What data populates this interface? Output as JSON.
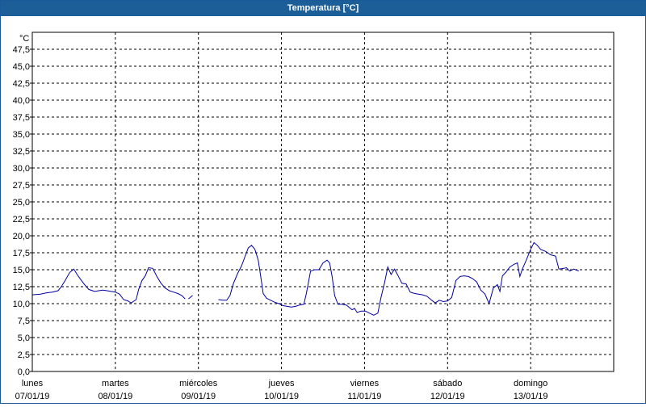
{
  "window": {
    "title": "Temperatura [°C]"
  },
  "chart_data": {
    "type": "line",
    "title": "Temperatura [°C]",
    "ylabel": "°C",
    "xlabel": "",
    "ylim": [
      0,
      50
    ],
    "yticks": [
      "0,0",
      "2,5",
      "5,0",
      "7,5",
      "10,0",
      "12,5",
      "15,0",
      "17,5",
      "20,0",
      "22,5",
      "25,0",
      "27,5",
      "30,0",
      "32,5",
      "35,0",
      "37,5",
      "40,0",
      "42,5",
      "45,0",
      "47,5"
    ],
    "xlim": [
      0,
      7
    ],
    "xlabels": [
      {
        "day": "lunes",
        "date": "07/01/19"
      },
      {
        "day": "martes",
        "date": "08/01/19"
      },
      {
        "day": "miércoles",
        "date": "09/01/19"
      },
      {
        "day": "jueves",
        "date": "10/01/19"
      },
      {
        "day": "viernes",
        "date": "11/01/19"
      },
      {
        "day": "sábado",
        "date": "12/01/19"
      },
      {
        "day": "domingo",
        "date": "13/01/19"
      }
    ],
    "grid": true,
    "line_color": "#0000a0",
    "series": [
      {
        "segments": [
          [
            [
              0.0,
              11.3
            ],
            [
              0.1,
              11.4
            ],
            [
              0.17,
              11.6
            ],
            [
              0.24,
              11.7
            ],
            [
              0.31,
              11.9
            ],
            [
              0.35,
              12.5
            ],
            [
              0.4,
              13.5
            ],
            [
              0.45,
              14.6
            ],
            [
              0.5,
              15.1
            ],
            [
              0.54,
              14.3
            ],
            [
              0.58,
              13.6
            ],
            [
              0.63,
              12.8
            ],
            [
              0.68,
              12.1
            ],
            [
              0.75,
              11.8
            ],
            [
              0.8,
              11.9
            ],
            [
              0.85,
              12.0
            ],
            [
              0.9,
              11.9
            ],
            [
              0.95,
              11.8
            ],
            [
              1.0,
              11.7
            ],
            [
              1.05,
              11.4
            ],
            [
              1.1,
              10.6
            ],
            [
              1.15,
              10.4
            ],
            [
              1.19,
              10.1
            ],
            [
              1.25,
              10.6
            ],
            [
              1.28,
              12.1
            ],
            [
              1.32,
              13.4
            ],
            [
              1.36,
              14.1
            ],
            [
              1.4,
              15.3
            ],
            [
              1.45,
              15.2
            ],
            [
              1.5,
              14.0
            ],
            [
              1.55,
              13.0
            ],
            [
              1.6,
              12.3
            ],
            [
              1.65,
              11.9
            ],
            [
              1.7,
              11.7
            ],
            [
              1.75,
              11.5
            ],
            [
              1.8,
              11.2
            ],
            [
              1.84,
              10.7
            ]
          ],
          [
            [
              1.88,
              10.7
            ],
            [
              1.93,
              11.2
            ]
          ],
          [
            [
              2.24,
              10.6
            ],
            [
              2.3,
              10.5
            ],
            [
              2.34,
              10.5
            ],
            [
              2.38,
              11.2
            ],
            [
              2.42,
              12.9
            ],
            [
              2.47,
              14.4
            ],
            [
              2.52,
              15.6
            ],
            [
              2.56,
              16.9
            ],
            [
              2.6,
              18.2
            ],
            [
              2.64,
              18.6
            ],
            [
              2.68,
              18.0
            ],
            [
              2.72,
              16.4
            ],
            [
              2.75,
              14.0
            ],
            [
              2.78,
              11.5
            ],
            [
              2.82,
              10.8
            ],
            [
              2.87,
              10.5
            ],
            [
              2.92,
              10.2
            ],
            [
              2.97,
              10.0
            ],
            [
              3.02,
              9.7
            ],
            [
              3.07,
              9.6
            ],
            [
              3.12,
              9.5
            ],
            [
              3.17,
              9.6
            ],
            [
              3.22,
              9.8
            ],
            [
              3.27,
              9.9
            ],
            [
              3.3,
              11.5
            ],
            [
              3.35,
              14.8
            ],
            [
              3.4,
              15.0
            ],
            [
              3.45,
              15.0
            ],
            [
              3.5,
              16.0
            ],
            [
              3.55,
              16.4
            ],
            [
              3.58,
              16.0
            ],
            [
              3.61,
              14.0
            ],
            [
              3.64,
              11.2
            ],
            [
              3.68,
              9.9
            ],
            [
              3.73,
              9.9
            ],
            [
              3.78,
              9.8
            ],
            [
              3.82,
              9.4
            ],
            [
              3.85,
              9.1
            ],
            [
              3.88,
              9.3
            ],
            [
              3.91,
              8.7
            ],
            [
              3.96,
              8.9
            ],
            [
              4.01,
              8.9
            ],
            [
              4.06,
              8.6
            ],
            [
              4.11,
              8.3
            ],
            [
              4.16,
              8.6
            ],
            [
              4.2,
              11.0
            ],
            [
              4.24,
              13.0
            ],
            [
              4.28,
              15.4
            ],
            [
              4.32,
              14.3
            ],
            [
              4.36,
              15.1
            ],
            [
              4.4,
              14.2
            ],
            [
              4.45,
              13.0
            ],
            [
              4.5,
              12.9
            ],
            [
              4.55,
              11.7
            ],
            [
              4.6,
              11.5
            ],
            [
              4.65,
              11.4
            ],
            [
              4.7,
              11.3
            ],
            [
              4.75,
              11.1
            ],
            [
              4.8,
              10.6
            ],
            [
              4.85,
              10.1
            ],
            [
              4.9,
              10.5
            ],
            [
              4.95,
              10.3
            ],
            [
              5.0,
              10.4
            ],
            [
              5.05,
              10.9
            ],
            [
              5.1,
              13.4
            ],
            [
              5.15,
              14.0
            ],
            [
              5.2,
              14.1
            ],
            [
              5.25,
              14.0
            ],
            [
              5.3,
              13.7
            ],
            [
              5.35,
              13.2
            ],
            [
              5.4,
              12.0
            ],
            [
              5.45,
              11.4
            ],
            [
              5.5,
              10.0
            ],
            [
              5.55,
              12.3
            ],
            [
              5.6,
              12.8
            ],
            [
              5.63,
              11.8
            ],
            [
              5.66,
              14.1
            ],
            [
              5.7,
              14.6
            ],
            [
              5.75,
              15.4
            ],
            [
              5.8,
              15.8
            ],
            [
              5.84,
              16.0
            ],
            [
              5.87,
              14.0
            ],
            [
              5.9,
              15.1
            ],
            [
              5.95,
              16.5
            ],
            [
              6.0,
              18.0
            ],
            [
              6.04,
              19.0
            ],
            [
              6.08,
              18.6
            ],
            [
              6.12,
              18.0
            ],
            [
              6.18,
              17.7
            ],
            [
              6.24,
              17.2
            ],
            [
              6.3,
              17.0
            ],
            [
              6.34,
              15.1
            ],
            [
              6.4,
              15.2
            ],
            [
              6.43,
              15.3
            ],
            [
              6.47,
              14.8
            ],
            [
              6.52,
              15.1
            ],
            [
              6.58,
              14.8
            ]
          ]
        ]
      }
    ]
  }
}
